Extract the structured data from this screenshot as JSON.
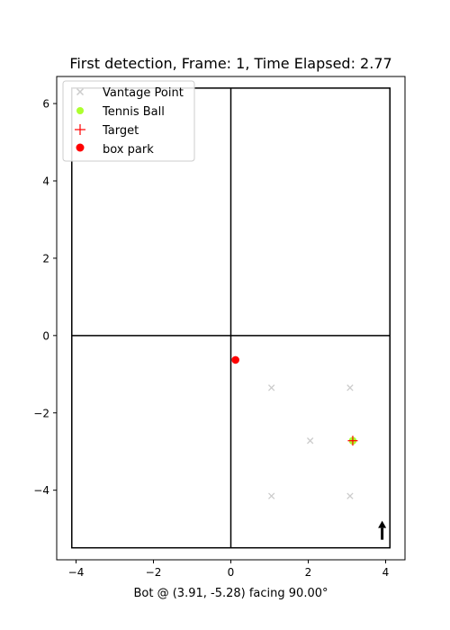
{
  "chart_data": {
    "type": "scatter",
    "title": "First detection, Frame: 1, Time Elapsed: 2.77",
    "xlabel": "Bot @ (3.91, -5.28) facing 90.00°",
    "ylabel": "",
    "xlim": [
      -4.5,
      4.5
    ],
    "ylim": [
      -5.8,
      6.7
    ],
    "x_ticks": [
      -4,
      -2,
      0,
      2,
      4
    ],
    "y_ticks": [
      -4,
      -2,
      0,
      2,
      4,
      6
    ],
    "grid": false,
    "legend_position": "top-left",
    "court": {
      "outer_x": [
        -4.11,
        4.11
      ],
      "outer_y": [
        -5.49,
        6.4
      ],
      "center_x": 0,
      "center_y": 0,
      "color": "#000000"
    },
    "series": [
      {
        "name": "Vantage Point",
        "marker": "x",
        "color": "#cccccc",
        "points": [
          [
            1.05,
            -1.35
          ],
          [
            3.08,
            -1.35
          ],
          [
            2.05,
            -2.72
          ],
          [
            1.05,
            -4.15
          ],
          [
            3.08,
            -4.15
          ]
        ]
      },
      {
        "name": "Tennis Ball",
        "marker": "circle",
        "color": "#adff2f",
        "points": [
          [
            3.15,
            -2.72
          ]
        ]
      },
      {
        "name": "Target",
        "marker": "plus",
        "color": "#ff0000",
        "points": [
          [
            3.15,
            -2.72
          ]
        ]
      },
      {
        "name": "box park",
        "marker": "circle",
        "color": "#ff0000",
        "points": [
          [
            0.12,
            -0.63
          ]
        ]
      }
    ],
    "bot": {
      "x": 3.91,
      "y": -5.28,
      "heading_deg": 90,
      "color": "#000000"
    }
  }
}
